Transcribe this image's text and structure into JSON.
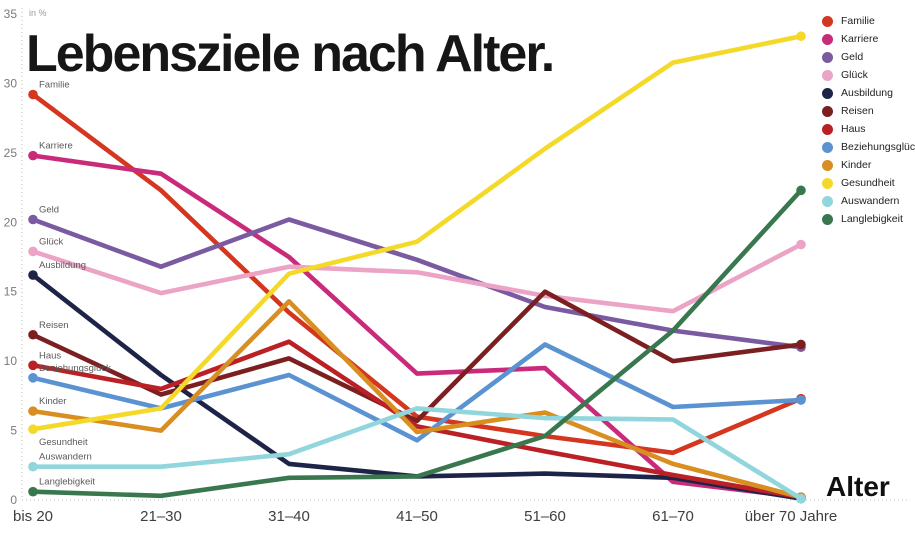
{
  "title": "Lebensziele nach Alter.",
  "unit_label": "in %",
  "x_axis_label": "Alter",
  "chart_data": {
    "type": "line",
    "categories": [
      "bis 20",
      "21–30",
      "31–40",
      "41–50",
      "51–60",
      "61–70",
      "über 70 Jahre"
    ],
    "y_ticks": [
      0,
      5,
      10,
      15,
      20,
      25,
      30,
      35
    ],
    "ylim": [
      0,
      35
    ],
    "grid": "axis-dotted-only",
    "legend_position": "right",
    "series": [
      {
        "name": "Familie",
        "color": "#d4361f",
        "values": [
          29.2,
          22.3,
          13.5,
          6.0,
          4.6,
          3.4,
          7.3
        ]
      },
      {
        "name": "Karriere",
        "color": "#ca2a7a",
        "values": [
          24.8,
          23.5,
          17.5,
          9.1,
          9.5,
          1.3,
          0.2
        ]
      },
      {
        "name": "Geld",
        "color": "#7a5aa0",
        "values": [
          20.2,
          16.8,
          20.2,
          17.3,
          13.9,
          12.2,
          11.0
        ]
      },
      {
        "name": "Glück",
        "color": "#eba3c6",
        "values": [
          17.9,
          14.9,
          16.8,
          16.4,
          14.7,
          13.6,
          18.4
        ]
      },
      {
        "name": "Ausbildung",
        "color": "#1e2447",
        "values": [
          16.2,
          9.0,
          2.6,
          1.7,
          1.9,
          1.6,
          0.1
        ]
      },
      {
        "name": "Reisen",
        "color": "#7c1f21",
        "values": [
          11.9,
          7.6,
          10.2,
          5.7,
          15.0,
          10.0,
          11.2
        ]
      },
      {
        "name": "Haus",
        "color": "#bb2025",
        "values": [
          9.7,
          8.0,
          11.4,
          5.3,
          3.5,
          1.8,
          0.2
        ]
      },
      {
        "name": "Beziehungsglück",
        "color": "#5b92d2",
        "values": [
          8.8,
          6.6,
          9.0,
          4.3,
          11.2,
          6.7,
          7.2
        ]
      },
      {
        "name": "Kinder",
        "color": "#d98e21",
        "values": [
          6.4,
          5.0,
          14.3,
          4.9,
          6.3,
          2.6,
          0.2
        ]
      },
      {
        "name": "Gesundheit",
        "color": "#f4d929",
        "values": [
          5.1,
          6.6,
          16.3,
          18.6,
          25.3,
          31.5,
          33.4
        ]
      },
      {
        "name": "Auswandern",
        "color": "#90d6dc",
        "values": [
          2.4,
          2.4,
          3.3,
          6.6,
          5.9,
          5.8,
          0.1
        ]
      },
      {
        "name": "Langlebigkeit",
        "color": "#39784f",
        "values": [
          0.6,
          0.3,
          1.6,
          1.7,
          4.6,
          12.2,
          22.3
        ]
      }
    ]
  }
}
